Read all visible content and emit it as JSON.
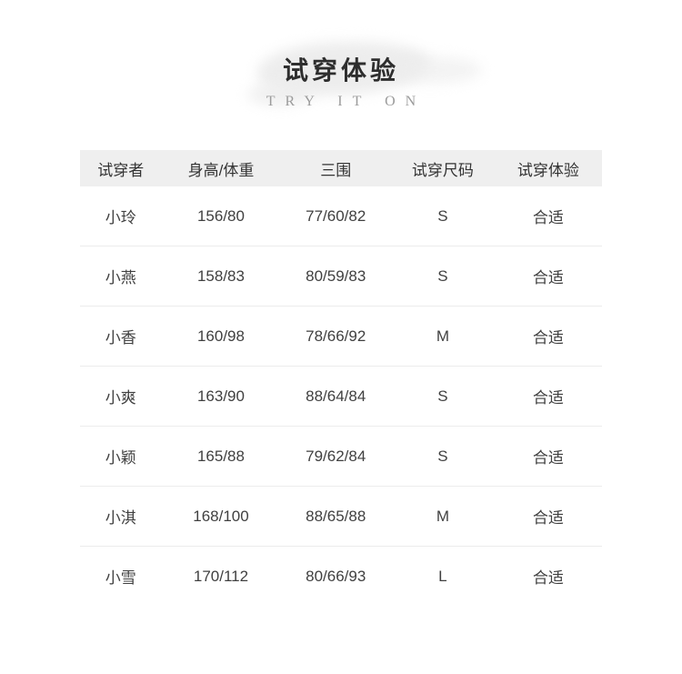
{
  "header": {
    "title": "试穿体验",
    "subtitle": "TRY IT ON",
    "title_color": "#2e2e2e",
    "subtitle_color": "#9b9b9b",
    "brush_color": "#ededed"
  },
  "table": {
    "header_bg": "#efefef",
    "divider_color": "#ececec",
    "text_color": "#404040",
    "columns": [
      "试穿者",
      "身高/体重",
      "三围",
      "试穿尺码",
      "试穿体验"
    ],
    "rows": [
      [
        "小玲",
        "156/80",
        "77/60/82",
        "S",
        "合适"
      ],
      [
        "小燕",
        "158/83",
        "80/59/83",
        "S",
        "合适"
      ],
      [
        "小香",
        "160/98",
        "78/66/92",
        "M",
        "合适"
      ],
      [
        "小爽",
        "163/90",
        "88/64/84",
        "S",
        "合适"
      ],
      [
        "小颖",
        "165/88",
        "79/62/84",
        "S",
        "合适"
      ],
      [
        "小淇",
        "168/100",
        "88/65/88",
        "M",
        "合适"
      ],
      [
        "小雪",
        "170/112",
        "80/66/93",
        "L",
        "合适"
      ]
    ]
  }
}
